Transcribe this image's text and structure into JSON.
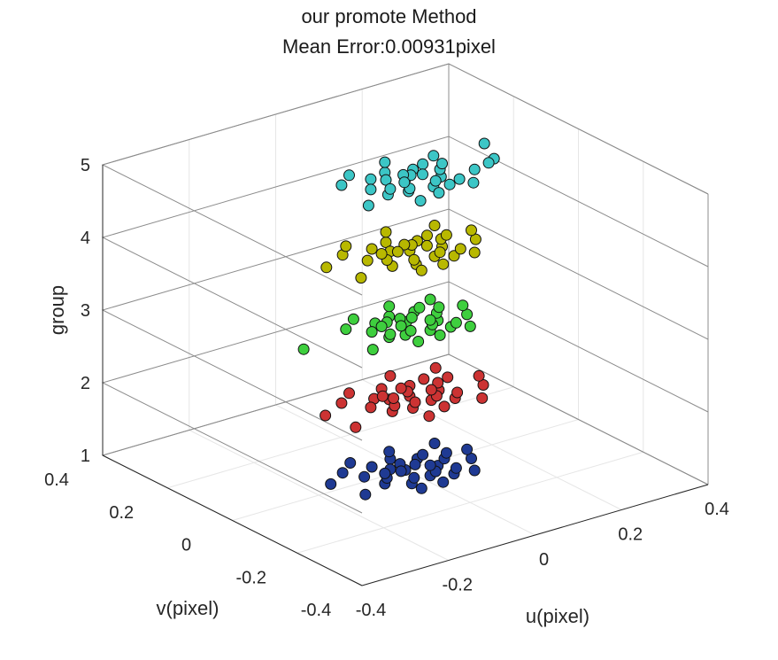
{
  "chart_data": {
    "type": "scatter",
    "title": [
      "our promote Method",
      "Mean Error:0.00931pixel"
    ],
    "xlabel": "u(pixel)",
    "ylabel": "v(pixel)",
    "zlabel": "group",
    "xlim": [
      -0.4,
      0.4
    ],
    "ylim": [
      -0.4,
      0.4
    ],
    "zlim": [
      1,
      5
    ],
    "x_ticks": [
      "-0.4",
      "-0.2",
      "0",
      "0.2",
      "0.4"
    ],
    "y_ticks": [
      "-0.4",
      "-0.2",
      "0",
      "0.2",
      "0.4"
    ],
    "z_ticks": [
      "1",
      "2",
      "3",
      "4",
      "5"
    ],
    "grid": true,
    "series": [
      {
        "group": 1,
        "color": "#1f3a93",
        "points": [
          [
            -0.03,
            -0.06
          ],
          [
            0.02,
            -0.05
          ],
          [
            0.06,
            -0.02
          ],
          [
            0.09,
            0.0
          ],
          [
            0.05,
            0.03
          ],
          [
            0.01,
            0.06
          ],
          [
            -0.04,
            0.05
          ],
          [
            -0.08,
            0.02
          ],
          [
            -0.07,
            -0.03
          ],
          [
            0.0,
            0.0
          ],
          [
            0.03,
            0.01
          ],
          [
            -0.02,
            0.02
          ],
          [
            0.04,
            -0.04
          ],
          [
            -0.05,
            -0.01
          ],
          [
            0.07,
            0.04
          ],
          [
            0.11,
            0.02
          ],
          [
            0.13,
            -0.03
          ],
          [
            -0.1,
            0.06
          ],
          [
            -0.13,
            -0.05
          ],
          [
            0.02,
            -0.09
          ],
          [
            0.06,
            -0.07
          ],
          [
            -0.01,
            -0.04
          ],
          [
            0.08,
            -0.05
          ],
          [
            0.12,
            0.07
          ],
          [
            -0.06,
            0.09
          ],
          [
            0.15,
            0.01
          ],
          [
            -0.15,
            0.03
          ],
          [
            0.03,
            0.09
          ],
          [
            -0.03,
            -0.09
          ],
          [
            0.1,
            -0.08
          ],
          [
            0.01,
            0.03
          ],
          [
            -0.01,
            0.0
          ],
          [
            0.05,
            -0.01
          ],
          [
            -0.04,
            0.01
          ]
        ]
      },
      {
        "group": 2,
        "color": "#cc3333",
        "points": [
          [
            -0.02,
            -0.05
          ],
          [
            0.03,
            -0.04
          ],
          [
            0.07,
            -0.01
          ],
          [
            0.09,
            0.02
          ],
          [
            0.04,
            0.04
          ],
          [
            -0.01,
            0.06
          ],
          [
            -0.05,
            0.03
          ],
          [
            -0.08,
            0.0
          ],
          [
            -0.06,
            -0.04
          ],
          [
            0.01,
            0.0
          ],
          [
            0.02,
            0.02
          ],
          [
            -0.03,
            0.01
          ],
          [
            0.05,
            -0.03
          ],
          [
            -0.04,
            -0.02
          ],
          [
            0.08,
            0.05
          ],
          [
            0.12,
            0.03
          ],
          [
            0.15,
            -0.04
          ],
          [
            -0.11,
            0.05
          ],
          [
            -0.16,
            -0.06
          ],
          [
            0.03,
            -0.08
          ],
          [
            0.07,
            -0.06
          ],
          [
            0.0,
            -0.03
          ],
          [
            0.09,
            -0.04
          ],
          [
            0.13,
            0.08
          ],
          [
            -0.07,
            0.08
          ],
          [
            0.17,
            0.0
          ],
          [
            -0.17,
            0.02
          ],
          [
            0.04,
            0.1
          ],
          [
            -0.02,
            -0.1
          ],
          [
            0.11,
            -0.09
          ],
          [
            0.02,
            0.04
          ],
          [
            -0.02,
            0.01
          ],
          [
            0.06,
            0.0
          ],
          [
            -0.03,
            0.03
          ]
        ]
      },
      {
        "group": 3,
        "color": "#3ecf3e",
        "points": [
          [
            -0.03,
            -0.04
          ],
          [
            0.02,
            -0.05
          ],
          [
            0.06,
            -0.02
          ],
          [
            0.08,
            0.01
          ],
          [
            0.05,
            0.04
          ],
          [
            0.0,
            0.05
          ],
          [
            -0.04,
            0.04
          ],
          [
            -0.07,
            0.01
          ],
          [
            -0.06,
            -0.03
          ],
          [
            0.01,
            0.01
          ],
          [
            0.03,
            0.02
          ],
          [
            -0.02,
            0.03
          ],
          [
            0.04,
            -0.03
          ],
          [
            -0.05,
            -0.02
          ],
          [
            0.07,
            0.05
          ],
          [
            0.1,
            0.03
          ],
          [
            0.12,
            -0.03
          ],
          [
            -0.1,
            0.05
          ],
          [
            -0.12,
            -0.06
          ],
          [
            0.02,
            -0.08
          ],
          [
            0.06,
            -0.06
          ],
          [
            -0.01,
            -0.03
          ],
          [
            0.08,
            -0.05
          ],
          [
            0.11,
            0.07
          ],
          [
            -0.06,
            0.08
          ],
          [
            0.14,
            0.01
          ],
          [
            -0.22,
            0.02
          ],
          [
            0.03,
            0.09
          ],
          [
            -0.03,
            -0.08
          ],
          [
            0.09,
            -0.08
          ],
          [
            0.01,
            0.03
          ],
          [
            -0.01,
            0.0
          ],
          [
            0.05,
            -0.01
          ],
          [
            -0.04,
            0.02
          ]
        ]
      },
      {
        "group": 4,
        "color": "#b8b800",
        "points": [
          [
            -0.02,
            -0.06
          ],
          [
            0.03,
            -0.05
          ],
          [
            0.07,
            -0.02
          ],
          [
            0.09,
            0.01
          ],
          [
            0.05,
            0.03
          ],
          [
            0.0,
            0.06
          ],
          [
            -0.04,
            0.05
          ],
          [
            -0.08,
            0.01
          ],
          [
            -0.06,
            -0.04
          ],
          [
            0.01,
            0.0
          ],
          [
            0.03,
            0.02
          ],
          [
            -0.02,
            0.02
          ],
          [
            0.05,
            -0.04
          ],
          [
            -0.05,
            -0.01
          ],
          [
            0.08,
            0.04
          ],
          [
            0.11,
            0.02
          ],
          [
            0.14,
            -0.03
          ],
          [
            -0.1,
            0.06
          ],
          [
            -0.14,
            -0.05
          ],
          [
            0.02,
            -0.09
          ],
          [
            0.06,
            -0.07
          ],
          [
            -0.01,
            -0.04
          ],
          [
            0.09,
            -0.05
          ],
          [
            0.12,
            0.07
          ],
          [
            -0.07,
            0.09
          ],
          [
            0.16,
            0.01
          ],
          [
            -0.16,
            0.03
          ],
          [
            0.03,
            0.1
          ],
          [
            -0.03,
            -0.09
          ],
          [
            0.1,
            -0.08
          ],
          [
            0.02,
            0.03
          ],
          [
            -0.01,
            0.01
          ],
          [
            0.05,
            0.0
          ],
          [
            -0.04,
            0.02
          ]
        ]
      },
      {
        "group": 5,
        "color": "#3cc6c6",
        "points": [
          [
            -0.03,
            -0.05
          ],
          [
            0.02,
            -0.06
          ],
          [
            0.06,
            -0.03
          ],
          [
            0.08,
            0.0
          ],
          [
            0.04,
            0.03
          ],
          [
            -0.01,
            0.05
          ],
          [
            -0.05,
            0.04
          ],
          [
            -0.08,
            0.0
          ],
          [
            -0.07,
            -0.04
          ],
          [
            0.0,
            0.0
          ],
          [
            0.02,
            0.01
          ],
          [
            -0.03,
            0.02
          ],
          [
            0.04,
            -0.04
          ],
          [
            -0.05,
            -0.02
          ],
          [
            0.07,
            0.04
          ],
          [
            0.1,
            0.02
          ],
          [
            0.13,
            -0.04
          ],
          [
            -0.11,
            0.05
          ],
          [
            -0.13,
            -0.06
          ],
          [
            0.01,
            -0.09
          ],
          [
            0.05,
            -0.07
          ],
          [
            -0.02,
            -0.04
          ],
          [
            0.08,
            -0.06
          ],
          [
            0.11,
            0.06
          ],
          [
            -0.07,
            0.08
          ],
          [
            0.22,
            0.05
          ],
          [
            0.19,
            -0.02
          ],
          [
            0.17,
            -0.03
          ],
          [
            0.02,
            0.09
          ],
          [
            -0.04,
            -0.1
          ],
          [
            0.09,
            -0.09
          ],
          [
            0.01,
            0.02
          ],
          [
            -0.01,
            -0.01
          ],
          [
            0.04,
            0.0
          ]
        ]
      }
    ]
  }
}
